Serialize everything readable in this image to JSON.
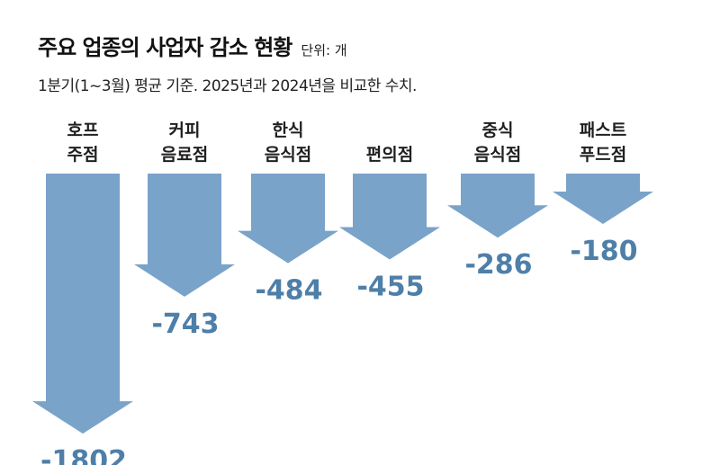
{
  "title": "주요 업종의 사업자 감소 현황",
  "unit": "단위: 개",
  "subtitle": "1분기(1~3월) 평균 기준. 2025년과 2024년을 비교한 수치.",
  "colors": {
    "arrow": "#7aa3c9",
    "value_text": "#4e7fa9",
    "category_text": "#1f1f1f"
  },
  "chart_data": {
    "type": "bar",
    "orientation": "downward-arrows",
    "categories": [
      [
        "호프",
        "주점"
      ],
      [
        "커피",
        "음료점"
      ],
      [
        "한식",
        "음식점"
      ],
      [
        "편의점"
      ],
      [
        "중식",
        "음식점"
      ],
      [
        "패스트",
        "푸드점"
      ]
    ],
    "values": [
      -1802,
      -743,
      -484,
      -455,
      -286,
      -180
    ],
    "value_labels": [
      "-1802",
      "-743",
      "-484",
      "-455",
      "-286",
      "-180"
    ]
  }
}
